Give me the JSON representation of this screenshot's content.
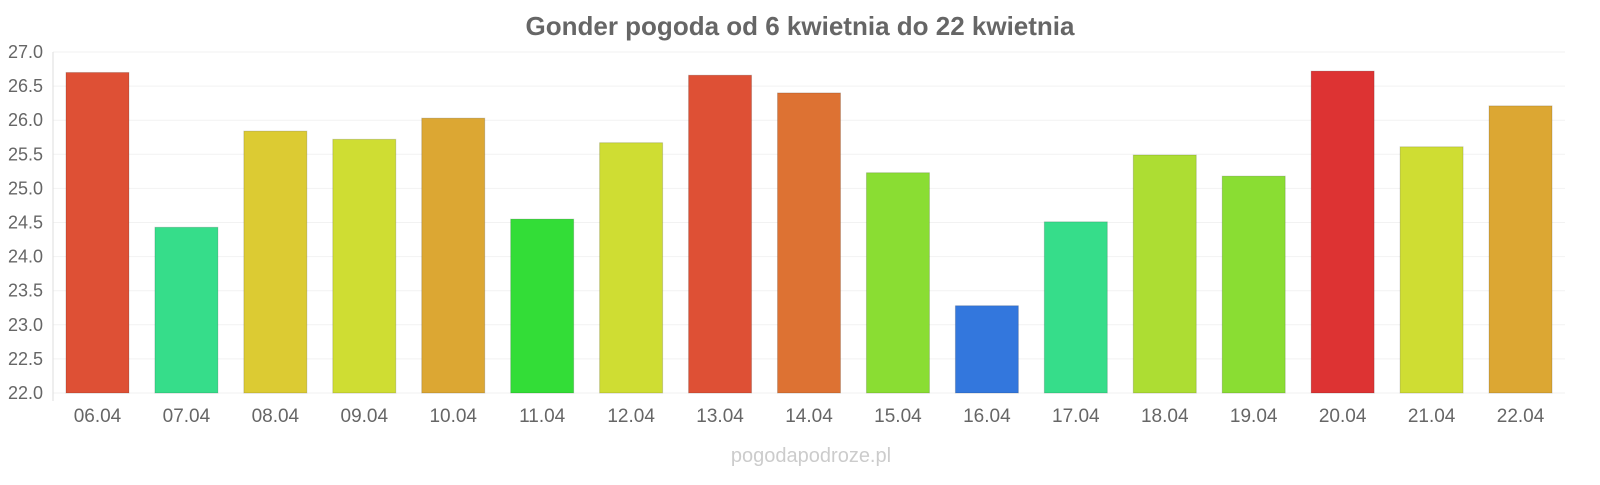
{
  "chart_data": {
    "type": "bar",
    "title": "Gonder pogoda od 6 kwietnia do 22 kwietnia",
    "xlabel": "",
    "ylabel": "",
    "ylim": [
      22.0,
      27.0
    ],
    "yticks": [
      "22.0",
      "22.5",
      "23.0",
      "23.5",
      "24.0",
      "24.5",
      "25.0",
      "25.5",
      "26.0",
      "26.5",
      "27.0"
    ],
    "categories": [
      "06.04",
      "07.04",
      "08.04",
      "09.04",
      "10.04",
      "11.04",
      "12.04",
      "13.04",
      "14.04",
      "15.04",
      "16.04",
      "17.04",
      "18.04",
      "19.04",
      "20.04",
      "21.04",
      "22.04"
    ],
    "values": [
      26.7,
      24.43,
      25.84,
      25.72,
      26.03,
      24.55,
      25.67,
      26.66,
      26.4,
      25.23,
      23.28,
      24.51,
      25.49,
      25.18,
      26.72,
      25.61,
      26.21
    ],
    "colors": [
      "#de5035",
      "#36dd8a",
      "#dccb33",
      "#cfdd33",
      "#dca733",
      "#33dd37",
      "#cfdd33",
      "#de5035",
      "#dd7233",
      "#8add33",
      "#3377dd",
      "#36dd8a",
      "#addd33",
      "#8add33",
      "#dd3333",
      "#cfdd33",
      "#dca733"
    ],
    "grid": true,
    "legend": "none"
  },
  "watermark": "pogodapodroze.pl"
}
